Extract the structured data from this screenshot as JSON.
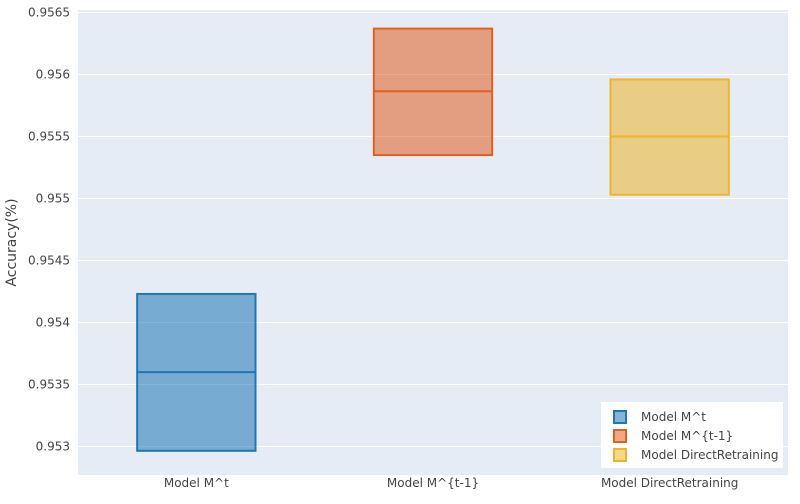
{
  "chart_data": {
    "type": "box",
    "title": "",
    "xlabel": "",
    "ylabel": "Accuracy(%)",
    "ylim": [
      0.95277,
      0.95652
    ],
    "yticks": [
      0.953,
      0.9535,
      0.954,
      0.9545,
      0.955,
      0.9555,
      0.956,
      0.9565
    ],
    "ytick_labels": [
      "0.953",
      "0.9535",
      "0.954",
      "0.9545",
      "0.955",
      "0.9555",
      "0.956",
      "0.9565"
    ],
    "categories": [
      "Model M^t",
      "Model M^{t-1}",
      "Model DirectRetraining"
    ],
    "series": [
      {
        "name": "Model M^t",
        "color": "#1f77b4",
        "q1": 0.952965,
        "median": 0.9536,
        "q3": 0.95423
      },
      {
        "name": "Model M^{t-1}",
        "color": "#e15f20",
        "q1": 0.95535,
        "median": 0.955865,
        "q3": 0.95637
      },
      {
        "name": "Model DirectRetraining",
        "color": "#efb428",
        "q1": 0.95503,
        "median": 0.9555,
        "q3": 0.95596
      }
    ],
    "legend": {
      "position": "bottom-right"
    },
    "grid": true
  }
}
